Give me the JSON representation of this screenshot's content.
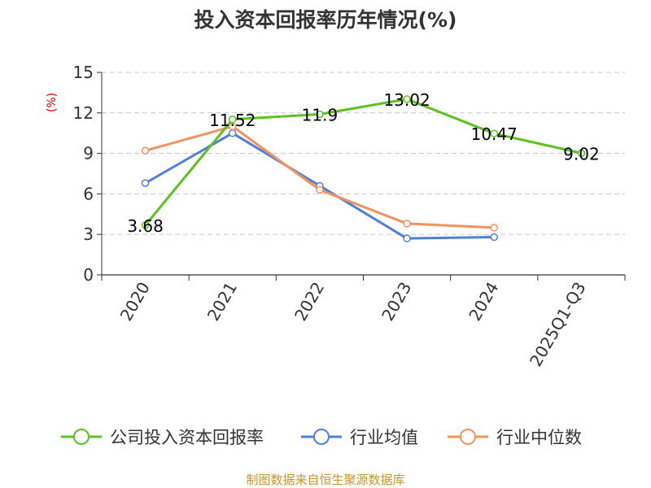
{
  "chart_data": {
    "type": "line",
    "title": "投入资本回报率历年情况(%)",
    "ylabel": "(%)",
    "xlabel": "",
    "categories": [
      "2020",
      "2021",
      "2022",
      "2023",
      "2024",
      "2025Q1-Q3"
    ],
    "yticks": [
      0,
      3,
      6,
      9,
      12,
      15
    ],
    "ylim": [
      0,
      15
    ],
    "grid": true,
    "legend_position": "bottom",
    "series": [
      {
        "name": "公司投入资本回报率",
        "color": "#5cc21f",
        "values": [
          3.68,
          11.52,
          11.9,
          13.02,
          10.47,
          9.02
        ],
        "labels": [
          "3.68",
          "11.52",
          "11.9",
          "13.02",
          "10.47",
          "9.02"
        ]
      },
      {
        "name": "行业均值",
        "color": "#4f7fd8",
        "values": [
          6.8,
          10.5,
          6.6,
          2.7,
          2.8,
          null
        ]
      },
      {
        "name": "行业中位数",
        "color": "#f4925c",
        "values": [
          9.2,
          11.0,
          6.3,
          3.8,
          3.5,
          null
        ]
      }
    ]
  },
  "source": "制图数据来自恒生聚源数据库"
}
